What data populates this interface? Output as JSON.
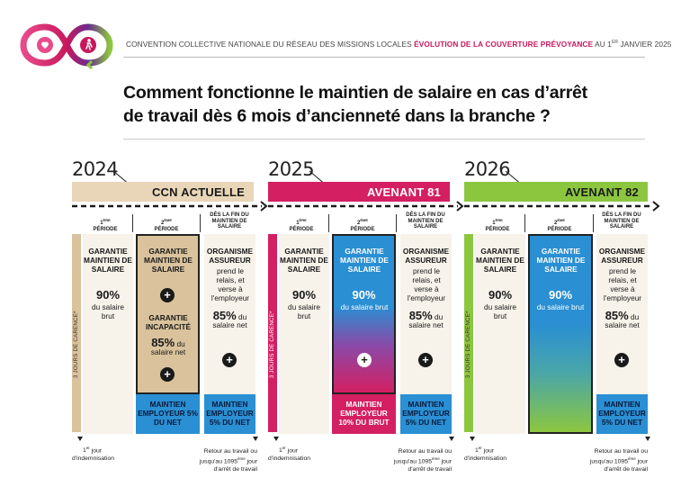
{
  "header": {
    "line_normal": "CONVENTION COLLECTIVE NATIONALE DU RÉSEAU DES MISSIONS LOCALES ",
    "line_highlight": "ÉVOLUTION DE LA COUVERTURE PRÉVOYANCE",
    "line_date_pre": " AU 1",
    "line_date_sup": "ER",
    "line_date_post": " JANVIER 2025"
  },
  "title": {
    "line1": "Comment fonctionne le maintien de salaire en cas d’arrêt",
    "line2": "de travail dès 6 mois d’ancienneté dans la branche ?"
  },
  "colors": {
    "ccn": "#e9d6b8",
    "avenant81": "#d41f62",
    "avenant82": "#8cc63f",
    "blue": "#2a8fd3",
    "cream": "#f7f2ea",
    "tan": "#d9c29c"
  },
  "periods": {
    "p1_num": "1",
    "p1_sup": "ÈRE",
    "p1_word": "PÉRIODE",
    "p2_num": "2",
    "p2_sup": "ÈME",
    "p2_word": "PÉRIODE",
    "p3": "DÈS LA FIN DU MAINTIEN DE SALAIRE"
  },
  "carence": "3 JOURS DE CARENCE*",
  "plus": "+",
  "sections": [
    {
      "year": "2024",
      "label": "CCN ACTUELLE",
      "p1": {
        "title": "GARANTIE MAINTIEN DE SALAIRE",
        "pct": "90%",
        "desc": "du salaire brut"
      },
      "p2": {
        "title": "GARANTIE MAINTIEN DE SALAIRE",
        "title2": "GARANTIE INCAPACITÉ",
        "pct": "85%",
        "pct_suffix": " du",
        "desc": "salaire net",
        "bottom": "MAINTIEN EMPLOYEUR 5% DU NET"
      },
      "p3": {
        "title": "ORGANISME ASSUREUR",
        "desc": "prend le relais, et verse à l'employeur",
        "pct": "85%",
        "pct_suffix": " du",
        "desc2": "salaire net",
        "bottom": "MAINTIEN EMPLOYEUR 5% DU NET"
      },
      "footer_left_sup": "er",
      "footer_left": "jour d'indemnisation",
      "footer_left_num": "1",
      "footer_right": "Retour au travail ou jusqu'au 1095",
      "footer_right_sup": "ème",
      "footer_right2": " jour d'arrêt de travail"
    },
    {
      "year": "2025",
      "label": "AVENANT 81",
      "p1": {
        "title": "GARANTIE MAINTIEN DE SALAIRE",
        "pct": "90%",
        "desc": "du salaire brut"
      },
      "p2": {
        "title": "GARANTIE MAINTIEN DE SALAIRE",
        "pct": "90%",
        "desc": "du salaire brut",
        "bottom": "MAINTIEN EMPLOYEUR 10% DU BRUT"
      },
      "p3": {
        "title": "ORGANISME ASSUREUR",
        "desc": "prend le relais, et verse à l'employeur",
        "pct": "85%",
        "pct_suffix": " du",
        "desc2": "salaire net",
        "bottom": "MAINTIEN EMPLOYEUR 5% DU NET"
      },
      "footer_left_num": "1",
      "footer_left_sup": "er",
      "footer_left": "jour d'indemnisation",
      "footer_right": "Retour au travail ou jusqu'au 1095",
      "footer_right_sup": "ème",
      "footer_right2": " jour d'arrêt de travail"
    },
    {
      "year": "2026",
      "label": "AVENANT 82",
      "p1": {
        "title": "GARANTIE MAINTIEN DE SALAIRE",
        "pct": "90%",
        "desc": "du salaire brut"
      },
      "p2": {
        "title": "GARANTIE MAINTIEN DE SALAIRE",
        "pct": "90%",
        "desc": "du salaire brut"
      },
      "p3": {
        "title": "ORGANISME ASSUREUR",
        "desc": "prend le relais, et verse à l'employeur",
        "pct": "85%",
        "pct_suffix": " du",
        "desc2": "salaire net",
        "bottom": "MAINTIEN EMPLOYEUR 5% DU NET"
      },
      "footer_left_num": "1",
      "footer_left_sup": "er",
      "footer_left": "jour d'indemnisation",
      "footer_right": "Retour au travail ou jusqu'au 1095",
      "footer_right_sup": "ème",
      "footer_right2": " jour d'arrêt de travail"
    }
  ]
}
